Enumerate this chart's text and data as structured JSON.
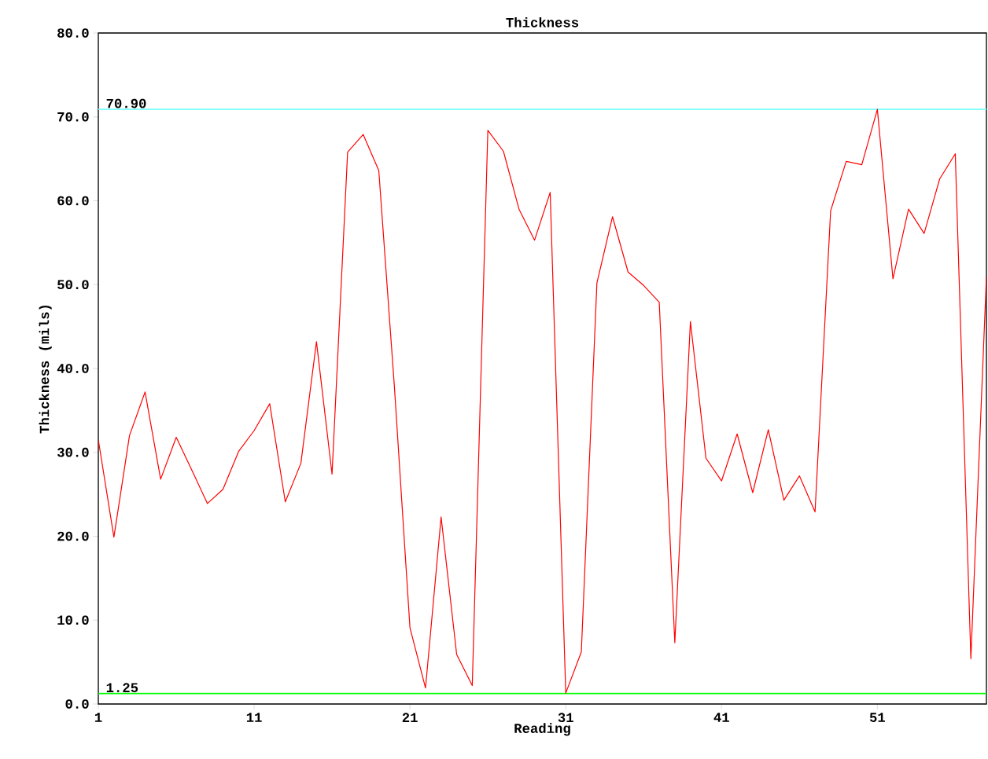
{
  "chart_data": {
    "type": "line",
    "title": "Thickness",
    "xlabel": "Reading",
    "ylabel": "Thickness (mils)",
    "x": [
      1,
      2,
      3,
      4,
      5,
      6,
      7,
      8,
      9,
      10,
      11,
      12,
      13,
      14,
      15,
      16,
      17,
      18,
      19,
      20,
      21,
      22,
      23,
      24,
      25,
      26,
      27,
      28,
      29,
      30,
      31,
      32,
      33,
      34,
      35,
      36,
      37,
      38,
      39,
      40,
      41,
      42,
      43,
      44,
      45,
      46,
      47,
      48,
      49,
      50,
      51,
      52,
      53,
      54,
      55,
      56,
      57,
      58
    ],
    "series": [
      {
        "color": "#ff0000",
        "values": [
          31.5,
          19.9,
          32.0,
          37.2,
          26.8,
          31.8,
          27.9,
          23.9,
          25.6,
          30.1,
          32.6,
          35.8,
          24.1,
          28.7,
          43.2,
          27.4,
          65.8,
          67.9,
          63.6,
          37.9,
          9.1,
          1.9,
          22.3,
          5.9,
          2.2,
          68.4,
          65.9,
          59.0,
          55.3,
          61.0,
          1.3,
          6.2,
          50.2,
          58.1,
          51.5,
          49.9,
          47.9,
          7.3,
          45.6,
          29.3,
          26.6,
          32.2,
          25.2,
          32.7,
          24.3,
          27.2,
          22.9,
          58.8,
          64.7,
          64.3,
          70.9,
          50.7,
          59.0,
          56.1,
          62.6,
          65.6,
          5.4,
          51.0
        ]
      }
    ],
    "xlim": [
      1,
      58
    ],
    "xticks": [
      1,
      11,
      21,
      31,
      41,
      51
    ],
    "ylim": [
      0,
      80
    ],
    "yticks": [
      {
        "value": 0,
        "label": "0.0"
      },
      {
        "value": 10,
        "label": "10.0"
      },
      {
        "value": 20,
        "label": "20.0"
      },
      {
        "value": 30,
        "label": "30.0"
      },
      {
        "value": 40,
        "label": "40.0"
      },
      {
        "value": 50,
        "label": "50.0"
      },
      {
        "value": 60,
        "label": "60.0"
      },
      {
        "value": 70,
        "label": "70.0"
      },
      {
        "value": 80,
        "label": "80.0"
      }
    ],
    "ref_lines": [
      {
        "axis": "y",
        "value": 70.9,
        "label": "70.90",
        "color": "#80ffff"
      },
      {
        "axis": "y",
        "value": 1.25,
        "label": "1.25",
        "color": "#00ff00"
      }
    ],
    "grid": false,
    "marker": "none",
    "line_style": "solid"
  }
}
